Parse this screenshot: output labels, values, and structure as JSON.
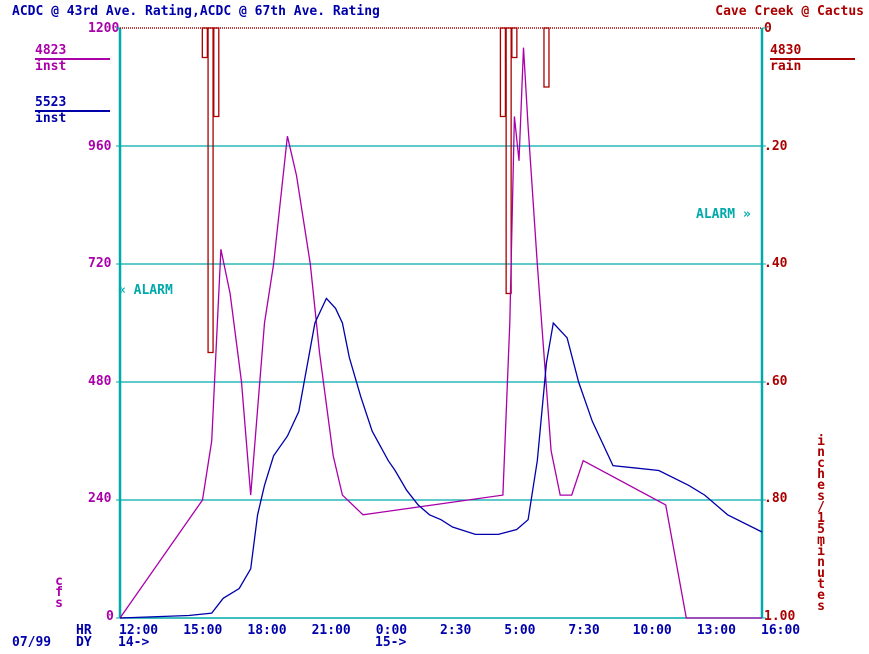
{
  "chart_data": {
    "type": "line",
    "title_left_part1": "ACDC @ 43rd Ave. Rating",
    "title_left_sep": ",",
    "title_left_part2": "ACDC @ 67th Ave. Rating",
    "title_right": "Cave Creek @ Cactus",
    "left_axis": {
      "label": "cfs",
      "range": [
        0,
        1200
      ],
      "ticks": [
        "1200",
        "960",
        "720",
        "480",
        "240",
        "0"
      ],
      "tick_values": [
        1200,
        960,
        720,
        480,
        240,
        0
      ]
    },
    "right_axis": {
      "label": "inches/15minutes",
      "range": [
        0,
        1.0
      ],
      "inverted": true,
      "ticks": [
        "0",
        ".20",
        ".40",
        ".60",
        ".80",
        "1.00"
      ],
      "tick_values": [
        0,
        0.2,
        0.4,
        0.6,
        0.8,
        1.0
      ]
    },
    "x_axis": {
      "hr_label": "HR",
      "dy_label": "DY",
      "date": "07/99",
      "ticks": [
        "12:00",
        "15:00",
        "18:00",
        "21:00",
        "0:00",
        "2:30",
        "5:00",
        "7:30",
        "10:00",
        "13:00",
        "16:00"
      ],
      "day_markers": [
        "14->",
        "15->"
      ],
      "range_hours": [
        12,
        40
      ]
    },
    "legend": [
      {
        "id": "4823",
        "sub": "inst",
        "color": "#aa00aa"
      },
      {
        "id": "5523",
        "sub": "inst",
        "color": "#0000aa"
      },
      {
        "id": "4830",
        "sub": "rain",
        "color": "#aa0000"
      }
    ],
    "alarms": [
      {
        "label": "ALARM",
        "axis": "left",
        "level": 672
      },
      {
        "label": "ALARM",
        "axis": "right",
        "level": 0.34
      }
    ],
    "grid": true,
    "series": [
      {
        "legend_id": "4823",
        "color": "#aa00aa",
        "axis": "left",
        "points": [
          [
            12.0,
            0
          ],
          [
            15.6,
            240
          ],
          [
            16.0,
            360
          ],
          [
            16.4,
            750
          ],
          [
            16.8,
            660
          ],
          [
            17.3,
            480
          ],
          [
            17.7,
            250
          ],
          [
            18.3,
            600
          ],
          [
            18.7,
            720
          ],
          [
            19.3,
            980
          ],
          [
            19.7,
            900
          ],
          [
            20.3,
            720
          ],
          [
            20.7,
            540
          ],
          [
            21.3,
            330
          ],
          [
            21.7,
            250
          ],
          [
            22.6,
            210
          ],
          [
            28.7,
            250
          ],
          [
            29.0,
            600
          ],
          [
            29.2,
            1020
          ],
          [
            29.4,
            930
          ],
          [
            29.6,
            1160
          ],
          [
            29.8,
            1000
          ],
          [
            30.2,
            720
          ],
          [
            30.8,
            340
          ],
          [
            31.2,
            250
          ],
          [
            31.7,
            250
          ],
          [
            32.2,
            320
          ],
          [
            35.8,
            230
          ],
          [
            36.7,
            0
          ],
          [
            40.0,
            0
          ]
        ]
      },
      {
        "legend_id": "5523",
        "color": "#0000aa",
        "axis": "left",
        "points": [
          [
            12.0,
            0
          ],
          [
            15.0,
            5
          ],
          [
            16.0,
            10
          ],
          [
            16.5,
            40
          ],
          [
            17.2,
            60
          ],
          [
            17.7,
            100
          ],
          [
            18.0,
            210
          ],
          [
            18.3,
            270
          ],
          [
            18.7,
            330
          ],
          [
            19.3,
            370
          ],
          [
            19.8,
            420
          ],
          [
            20.5,
            600
          ],
          [
            21.0,
            650
          ],
          [
            21.4,
            630
          ],
          [
            21.7,
            600
          ],
          [
            22.0,
            530
          ],
          [
            22.5,
            450
          ],
          [
            23.0,
            380
          ],
          [
            23.7,
            320
          ],
          [
            24.0,
            300
          ],
          [
            24.5,
            260
          ],
          [
            25.0,
            230
          ],
          [
            25.5,
            210
          ],
          [
            26.0,
            200
          ],
          [
            26.5,
            185
          ],
          [
            27.5,
            170
          ],
          [
            28.5,
            170
          ],
          [
            29.3,
            180
          ],
          [
            29.8,
            200
          ],
          [
            30.2,
            320
          ],
          [
            30.6,
            520
          ],
          [
            30.9,
            600
          ],
          [
            31.5,
            570
          ],
          [
            32.0,
            480
          ],
          [
            32.6,
            400
          ],
          [
            33.5,
            310
          ],
          [
            35.5,
            300
          ],
          [
            36.8,
            270
          ],
          [
            37.5,
            250
          ],
          [
            38.5,
            210
          ],
          [
            40.0,
            175
          ]
        ]
      }
    ],
    "rain_bars": [
      {
        "x": 15.7,
        "value": 0.05
      },
      {
        "x": 15.95,
        "value": 0.55
      },
      {
        "x": 16.2,
        "value": 0.15
      },
      {
        "x": 28.7,
        "value": 0.15
      },
      {
        "x": 28.95,
        "value": 0.45
      },
      {
        "x": 29.2,
        "value": 0.05
      },
      {
        "x": 30.6,
        "value": 0.1
      }
    ]
  }
}
